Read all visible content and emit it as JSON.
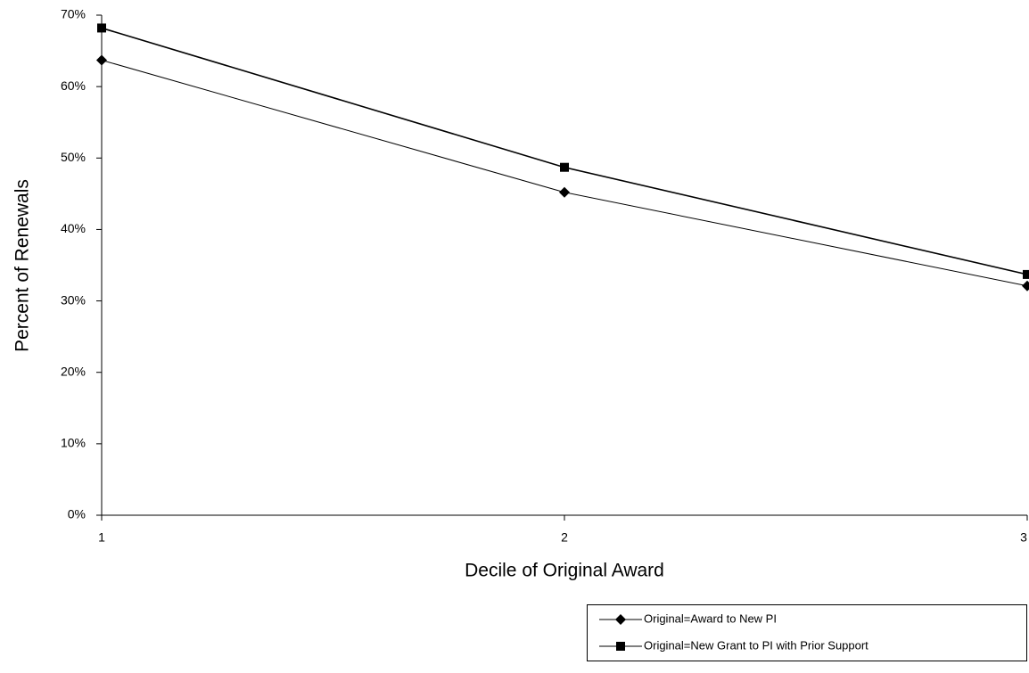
{
  "chart_data": {
    "type": "line",
    "x_label": "Decile of Original Award",
    "y_label": "Percent of Renewals",
    "x": [
      1,
      2,
      3
    ],
    "series": [
      {
        "name": "Original=Award to New PI",
        "color": "#000000",
        "marker": "diamond",
        "values": [
          63.7,
          45.2,
          32.1
        ]
      },
      {
        "name": "Original=New Grant to PI with Prior Support",
        "color": "#000000",
        "marker": "square",
        "values": [
          68.2,
          48.7,
          33.7
        ]
      }
    ],
    "xlim": [
      1,
      3
    ],
    "xticks": [
      1,
      2,
      3
    ],
    "ylim": [
      0,
      70
    ],
    "yticks": [
      {
        "value": 0,
        "label": "0%"
      },
      {
        "value": 10,
        "label": "10%"
      },
      {
        "value": 20,
        "label": "20%"
      },
      {
        "value": 30,
        "label": "30%"
      },
      {
        "value": 40,
        "label": "40%"
      },
      {
        "value": 50,
        "label": "50%"
      },
      {
        "value": 60,
        "label": "60%"
      },
      {
        "value": 70,
        "label": "70%"
      }
    ],
    "grid": false
  }
}
